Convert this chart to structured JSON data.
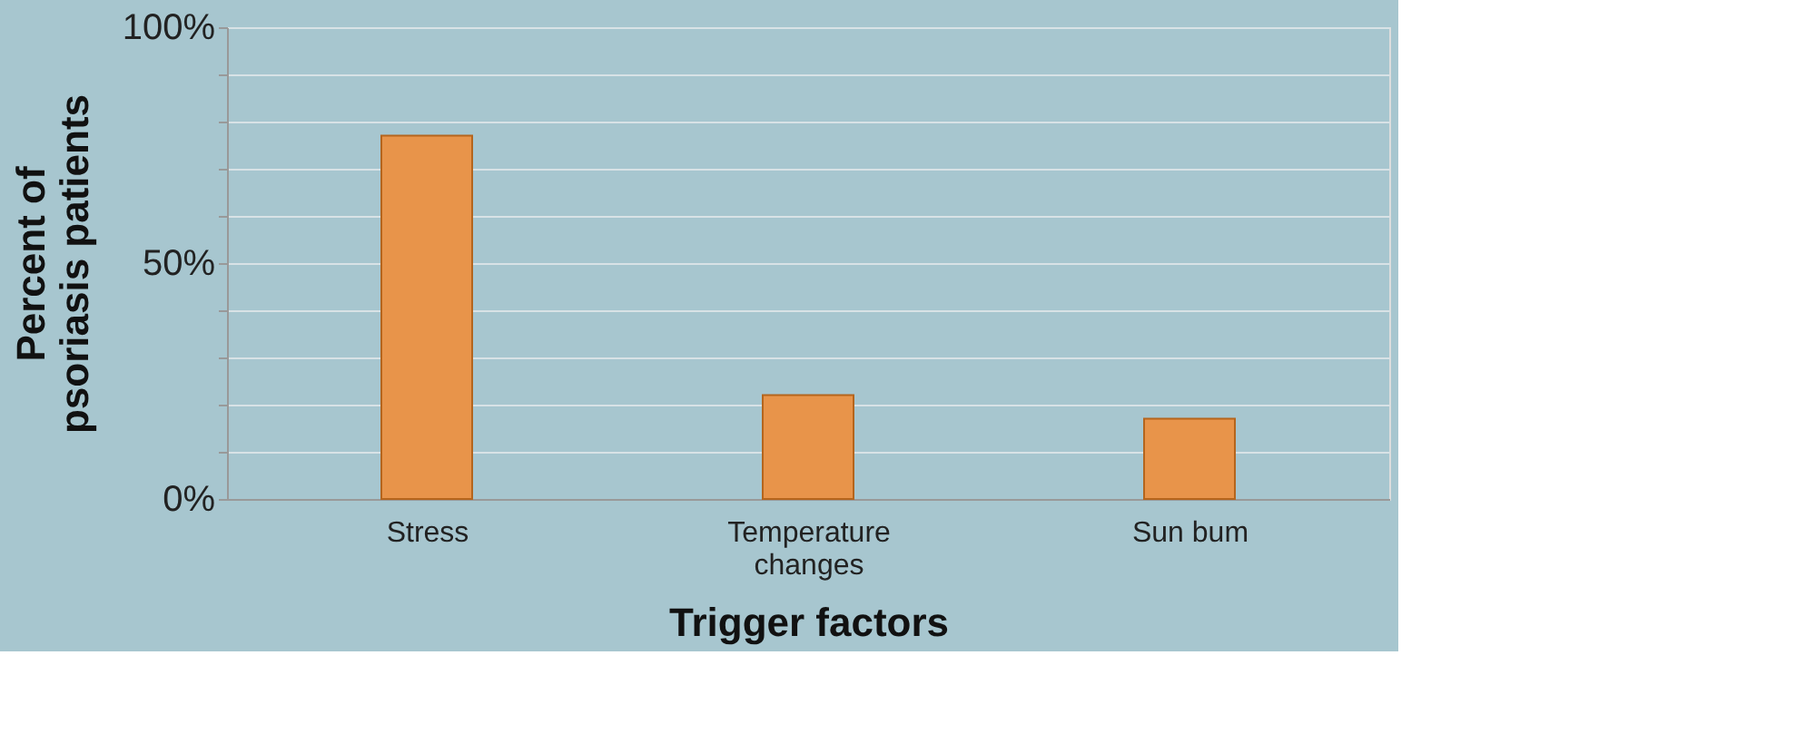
{
  "chart_data": {
    "type": "bar",
    "xlabel": "Trigger factors",
    "ylabel": "Percent of psoriasis patients",
    "categories": [
      "Stress",
      "Temperature changes",
      "Sun bum"
    ],
    "values": [
      77,
      22,
      17
    ],
    "color": "#e8944a",
    "ylim": [
      0,
      100
    ],
    "yticks": [
      {
        "value": 0,
        "label": "0%"
      },
      {
        "value": 10,
        "label": null
      },
      {
        "value": 20,
        "label": null
      },
      {
        "value": 30,
        "label": null
      },
      {
        "value": 40,
        "label": null
      },
      {
        "value": 50,
        "label": "50%"
      },
      {
        "value": 60,
        "label": null
      },
      {
        "value": 70,
        "label": null
      },
      {
        "value": 80,
        "label": null
      },
      {
        "value": 90,
        "label": null
      },
      {
        "value": 100,
        "label": "100%"
      }
    ],
    "grid": "y"
  }
}
